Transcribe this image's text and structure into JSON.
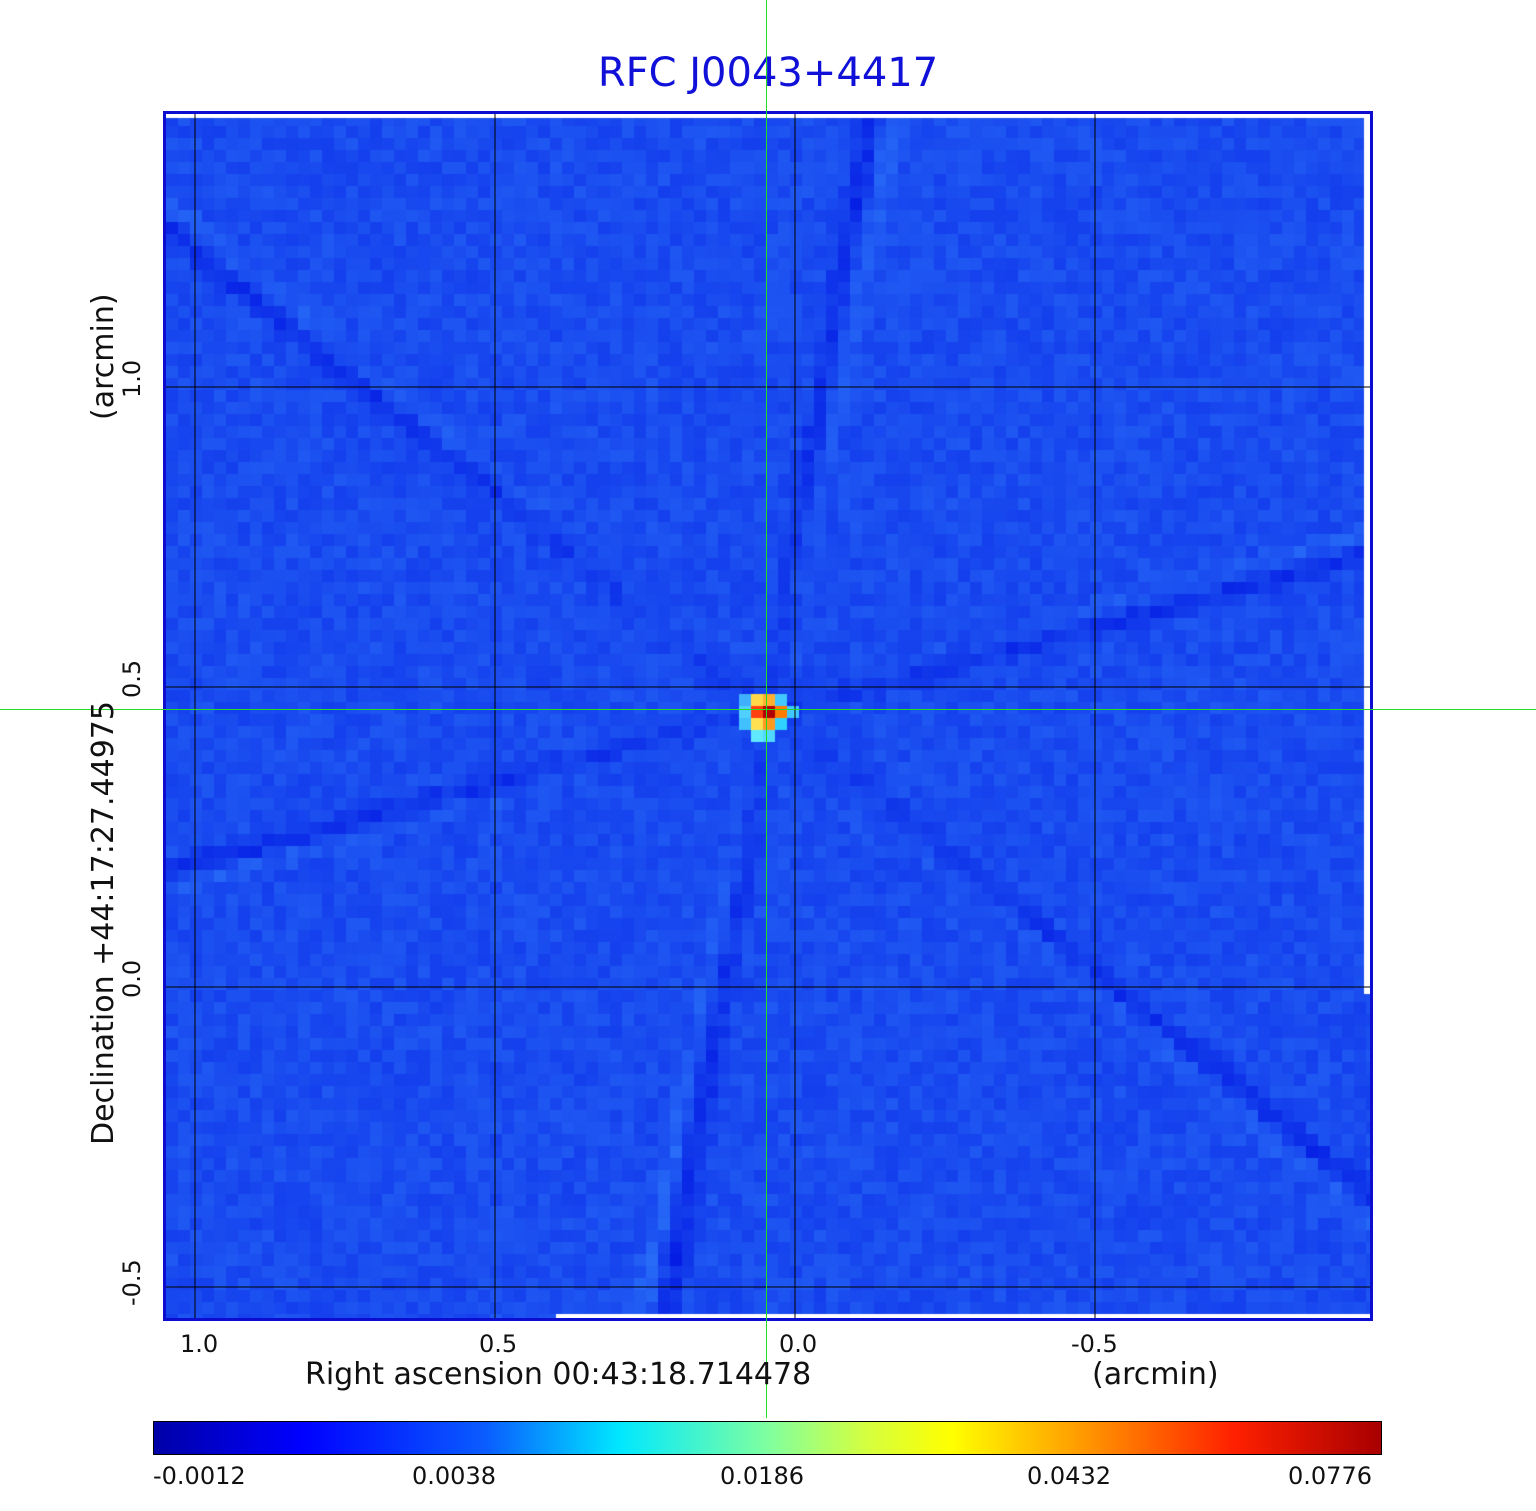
{
  "title": "RFC J0043+4417",
  "x_axis": {
    "label": "Right ascension  00:43:18.714478",
    "unit": "(arcmin)",
    "ticks": [
      "1.0",
      "0.5",
      "0.0",
      "-0.5"
    ]
  },
  "y_axis": {
    "label": "Declination  +44:17:27.44975",
    "unit": "(arcmin)",
    "ticks": [
      "1.0",
      "0.5",
      "0.0",
      "-0.5"
    ]
  },
  "colorbar": {
    "ticks": [
      "-0.0012",
      "0.0038",
      "0.0186",
      "0.0432",
      "0.0776"
    ]
  },
  "colors": {
    "title": "#1010d8",
    "frame": "#0d0dd0",
    "background_map": "#1a4cf0",
    "crosshair": "#22dd22",
    "grid": "#000000"
  }
}
